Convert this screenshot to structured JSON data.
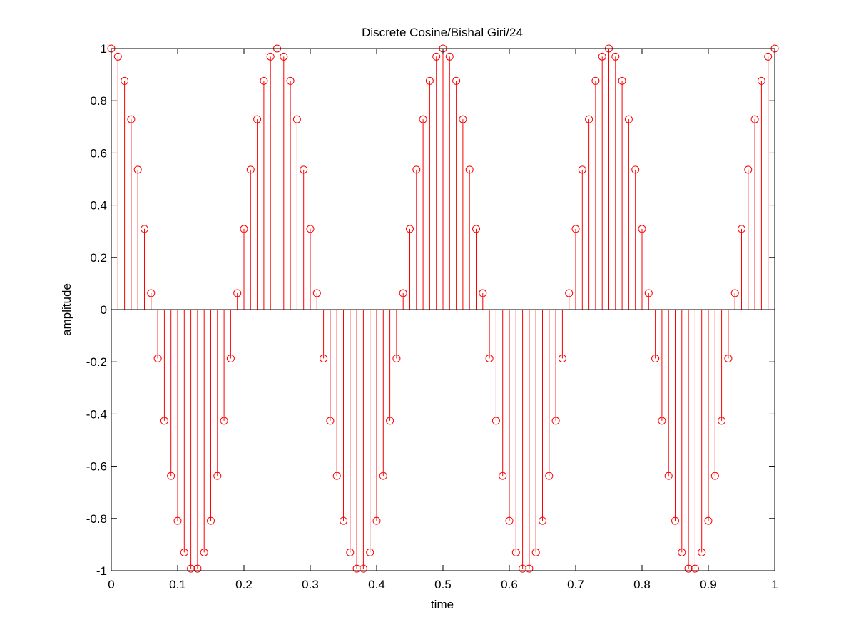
{
  "chart_data": {
    "type": "stem",
    "title": "Discrete Cosine/Bishal Giri/24",
    "xlabel": "time",
    "ylabel": "amplitude",
    "xlim": [
      0,
      1
    ],
    "ylim": [
      -1,
      1
    ],
    "grid": false,
    "legend": "none",
    "series_color": "#ff0000",
    "marker": "circle-open",
    "x_ticks": [
      0,
      0.1,
      0.2,
      0.3,
      0.4,
      0.5,
      0.6,
      0.7,
      0.8,
      0.9,
      1
    ],
    "x_tick_labels": [
      "0",
      "0.1",
      "0.2",
      "0.3",
      "0.4",
      "0.5",
      "0.6",
      "0.7",
      "0.8",
      "0.9",
      "1"
    ],
    "y_ticks": [
      -1,
      -0.8,
      -0.6,
      -0.4,
      -0.2,
      0,
      0.2,
      0.4,
      0.6,
      0.8,
      1
    ],
    "y_tick_labels": [
      "-1",
      "-0.8",
      "-0.6",
      "-0.4",
      "-0.2",
      "0",
      "0.2",
      "0.4",
      "0.6",
      "0.8",
      "1"
    ],
    "x": [
      0,
      0.01,
      0.02,
      0.03,
      0.04,
      0.05,
      0.06,
      0.07,
      0.08,
      0.09,
      0.1,
      0.11,
      0.12,
      0.13,
      0.14,
      0.15,
      0.16,
      0.17,
      0.18,
      0.19,
      0.2,
      0.21,
      0.22,
      0.23,
      0.24,
      0.25,
      0.26,
      0.27,
      0.28,
      0.29,
      0.3,
      0.31,
      0.32,
      0.33,
      0.34,
      0.35,
      0.36,
      0.37,
      0.38,
      0.39,
      0.4,
      0.41,
      0.42,
      0.43,
      0.44,
      0.45,
      0.46,
      0.47,
      0.48,
      0.49,
      0.5,
      0.51,
      0.52,
      0.53,
      0.54,
      0.55,
      0.56,
      0.57,
      0.58,
      0.59,
      0.6,
      0.61,
      0.62,
      0.63,
      0.64,
      0.65,
      0.66,
      0.67,
      0.68,
      0.69,
      0.7,
      0.71,
      0.72,
      0.73,
      0.74,
      0.75,
      0.76,
      0.77,
      0.78,
      0.79,
      0.8,
      0.81,
      0.82,
      0.83,
      0.84,
      0.85,
      0.86,
      0.87,
      0.88,
      0.89,
      0.9,
      0.91,
      0.92,
      0.93,
      0.94,
      0.95,
      0.96,
      0.97,
      0.98,
      0.99,
      1
    ],
    "y": [
      1,
      0.969,
      0.876,
      0.729,
      0.536,
      0.309,
      0.063,
      -0.187,
      -0.426,
      -0.637,
      -0.809,
      -0.93,
      -0.992,
      -0.992,
      -0.93,
      -0.809,
      -0.637,
      -0.426,
      -0.187,
      0.063,
      0.309,
      0.536,
      0.729,
      0.876,
      0.969,
      1,
      0.969,
      0.876,
      0.729,
      0.536,
      0.309,
      0.063,
      -0.187,
      -0.426,
      -0.637,
      -0.809,
      -0.93,
      -0.992,
      -0.992,
      -0.93,
      -0.809,
      -0.637,
      -0.426,
      -0.187,
      0.063,
      0.309,
      0.536,
      0.729,
      0.876,
      0.969,
      1,
      0.969,
      0.876,
      0.729,
      0.536,
      0.309,
      0.063,
      -0.187,
      -0.426,
      -0.637,
      -0.809,
      -0.93,
      -0.992,
      -0.992,
      -0.93,
      -0.809,
      -0.637,
      -0.426,
      -0.187,
      0.063,
      0.309,
      0.536,
      0.729,
      0.876,
      0.969,
      1,
      0.969,
      0.876,
      0.729,
      0.536,
      0.309,
      0.063,
      -0.187,
      -0.426,
      -0.637,
      -0.809,
      -0.93,
      -0.992,
      -0.992,
      -0.93,
      -0.809,
      -0.637,
      -0.426,
      -0.187,
      0.063,
      0.309,
      0.536,
      0.729,
      0.876,
      0.969,
      1
    ]
  }
}
